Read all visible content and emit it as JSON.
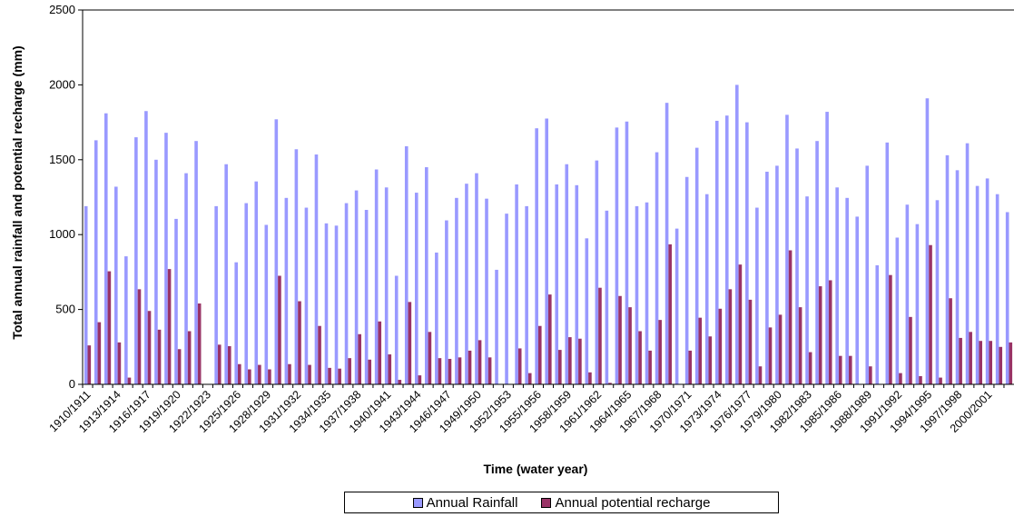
{
  "colors": {
    "rainfall": "#9999ff",
    "recharge": "#993366"
  },
  "chart_data": {
    "type": "bar",
    "title": "",
    "xlabel": "Time (water year)",
    "ylabel": "Total annual rainfall and potential recharge (mm)",
    "ylim": [
      0,
      2500
    ],
    "yticks": [
      0,
      500,
      1000,
      1500,
      2000,
      2500
    ],
    "grid": false,
    "legend_position": "bottom",
    "categories": [
      "1910/1911",
      "1911/1912",
      "1912/1913",
      "1913/1914",
      "1914/1915",
      "1915/1916",
      "1916/1917",
      "1917/1918",
      "1918/1919",
      "1919/1920",
      "1920/1921",
      "1921/1922",
      "1922/1923",
      "1923/1924",
      "1924/1925",
      "1925/1926",
      "1926/1927",
      "1927/1928",
      "1928/1929",
      "1929/1930",
      "1930/1931",
      "1931/1932",
      "1932/1933",
      "1933/1934",
      "1934/1935",
      "1935/1936",
      "1936/1937",
      "1937/1938",
      "1938/1939",
      "1939/1940",
      "1940/1941",
      "1941/1942",
      "1942/1943",
      "1943/1944",
      "1944/1945",
      "1945/1946",
      "1946/1947",
      "1947/1948",
      "1948/1949",
      "1949/1950",
      "1950/1951",
      "1951/1952",
      "1952/1953",
      "1953/1954",
      "1954/1955",
      "1955/1956",
      "1956/1957",
      "1957/1958",
      "1958/1959",
      "1959/1960",
      "1960/1961",
      "1961/1962",
      "1962/1963",
      "1963/1964",
      "1964/1965",
      "1965/1966",
      "1966/1967",
      "1967/1968",
      "1968/1969",
      "1969/1970",
      "1970/1971",
      "1971/1972",
      "1972/1973",
      "1973/1974",
      "1974/1975",
      "1975/1976",
      "1976/1977",
      "1977/1978",
      "1978/1979",
      "1979/1980",
      "1980/1981",
      "1981/1982",
      "1982/1983",
      "1983/1984",
      "1984/1985",
      "1985/1986",
      "1986/1987",
      "1987/1988",
      "1988/1989",
      "1989/1990",
      "1990/1991",
      "1991/1992",
      "1992/1993",
      "1993/1994",
      "1994/1995",
      "1995/1996",
      "1996/1997",
      "1997/1998",
      "1998/1999",
      "1999/2000",
      "2000/2001",
      "2001/2002",
      "2002/2003"
    ],
    "tick_labels": [
      "1910/1911",
      "1913/1914",
      "1916/1917",
      "1919/1920",
      "1922/1923",
      "1925/1926",
      "1928/1929",
      "1931/1932",
      "1934/1935",
      "1937/1938",
      "1940/1941",
      "1943/1944",
      "1946/1947",
      "1949/1950",
      "1952/1953",
      "1955/1956",
      "1958/1959",
      "1961/1962",
      "1964/1965",
      "1967/1968",
      "1970/1971",
      "1973/1974",
      "1976/1977",
      "1979/1980",
      "1982/1983",
      "1985/1986",
      "1988/1989",
      "1991/1992",
      "1994/1995",
      "1997/1998",
      "2000/2001"
    ],
    "series": [
      {
        "name": "Annual Rainfall",
        "values": [
          1190,
          1630,
          1810,
          1320,
          855,
          1650,
          1825,
          1500,
          1680,
          1105,
          1410,
          1625,
          0,
          1190,
          1470,
          815,
          1210,
          1355,
          1065,
          1770,
          1245,
          1570,
          1180,
          1535,
          1075,
          1060,
          1210,
          1295,
          1165,
          1435,
          1315,
          725,
          1590,
          1280,
          1450,
          880,
          1095,
          1245,
          1340,
          1410,
          1240,
          765,
          1140,
          1335,
          1190,
          1710,
          1775,
          1335,
          1470,
          1330,
          975,
          1495,
          1160,
          1715,
          1755,
          1190,
          1215,
          1550,
          1880,
          1040,
          1385,
          1580,
          1270,
          1760,
          1795,
          2000,
          1750,
          1180,
          1420,
          1460,
          1800,
          1575,
          1255,
          1625,
          1820,
          1315,
          1245,
          1120,
          1460,
          795,
          1615,
          980,
          1200,
          1070,
          1910,
          1230,
          1530,
          1430,
          1610,
          1325,
          1375,
          1270,
          1150
        ]
      },
      {
        "name": "Annual potential recharge",
        "values": [
          260,
          415,
          755,
          280,
          45,
          635,
          490,
          365,
          770,
          235,
          355,
          540,
          0,
          265,
          255,
          135,
          100,
          130,
          100,
          725,
          135,
          555,
          130,
          390,
          110,
          105,
          175,
          335,
          165,
          420,
          200,
          30,
          550,
          60,
          350,
          175,
          170,
          180,
          225,
          295,
          180,
          0,
          0,
          240,
          75,
          390,
          600,
          230,
          315,
          305,
          80,
          645,
          10,
          590,
          515,
          355,
          225,
          430,
          935,
          0,
          225,
          445,
          320,
          505,
          635,
          800,
          565,
          120,
          380,
          465,
          895,
          515,
          215,
          655,
          695,
          190,
          190,
          0,
          120,
          0,
          730,
          75,
          450,
          55,
          930,
          45,
          575,
          310,
          350,
          290,
          290,
          250,
          280
        ]
      }
    ]
  }
}
